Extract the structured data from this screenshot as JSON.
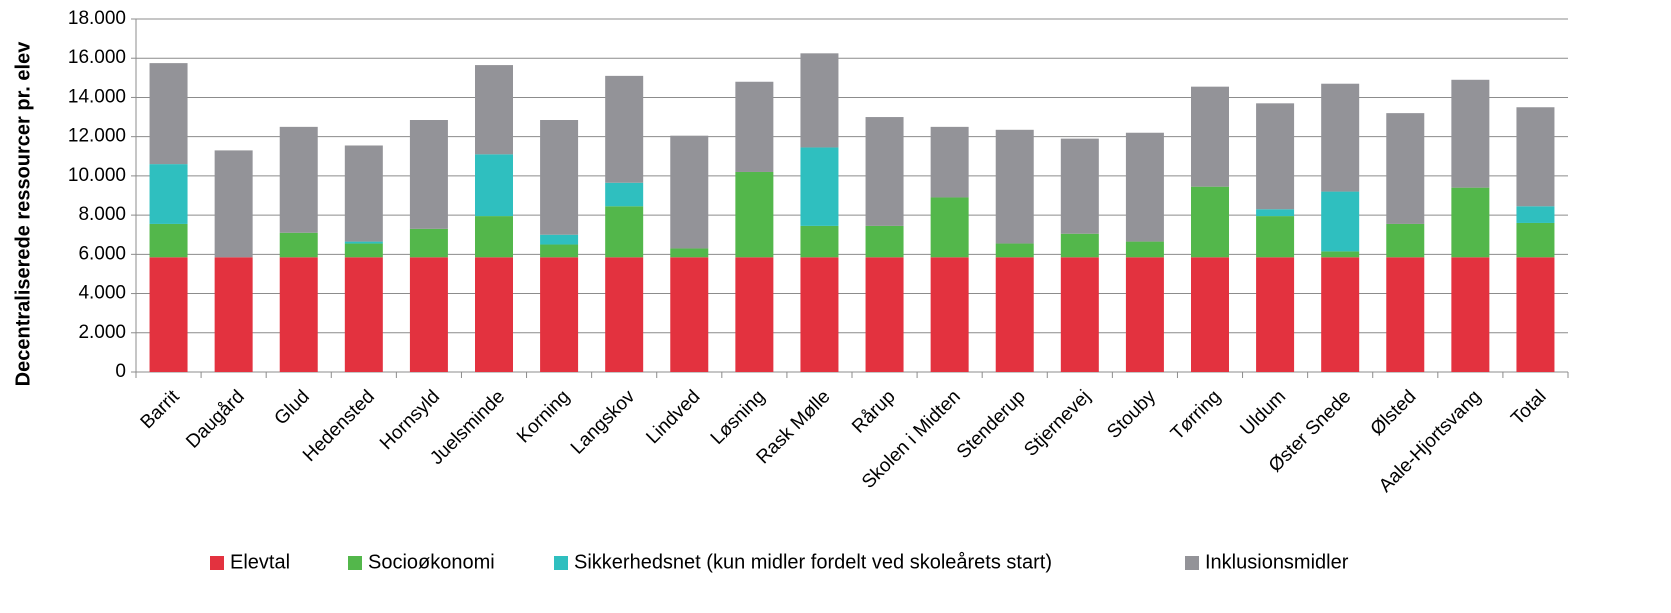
{
  "chart_data": {
    "type": "stacked_bar",
    "y_label": "Decentraliserede ressourcer pr. elev",
    "categories": [
      "Barrit",
      "Daugård",
      "Glud",
      "Hedensted",
      "Hornsyld",
      "Juelsminde",
      "Korning",
      "Langskov",
      "Lindved",
      "Løsning",
      "Rask Mølle",
      "Rårup",
      "Skolen i Midten",
      "Stenderup",
      "Stjernevej",
      "Stouby",
      "Tørring",
      "Uldum",
      "Øster Snede",
      "Ølsted",
      "Aale-Hjortsvang",
      "Total"
    ],
    "series": [
      {
        "name": "Elevtal",
        "color": "#e3323f",
        "values": [
          5850,
          5850,
          5850,
          5850,
          5850,
          5850,
          5850,
          5850,
          5850,
          5850,
          5850,
          5850,
          5850,
          5850,
          5850,
          5850,
          5850,
          5850,
          5850,
          5850,
          5850,
          5850
        ]
      },
      {
        "name": "Socioøkonomi",
        "color": "#53b74b",
        "values": [
          1700,
          0,
          1250,
          700,
          1450,
          2100,
          650,
          2600,
          450,
          4350,
          1600,
          1600,
          3050,
          700,
          1200,
          800,
          3600,
          2100,
          300,
          1700,
          3550,
          1750
        ]
      },
      {
        "name": "Sikkerhedsnet (kun midler fordelt ved skoleårets start)",
        "color": "#2fbfbf",
        "values": [
          3050,
          0,
          0,
          100,
          0,
          3150,
          500,
          1200,
          0,
          0,
          4000,
          0,
          0,
          0,
          0,
          0,
          0,
          350,
          3050,
          0,
          0,
          850
        ]
      },
      {
        "name": "Inklusionsmidler",
        "color": "#939398",
        "values": [
          5150,
          5450,
          5400,
          4900,
          5550,
          4550,
          5850,
          5450,
          5750,
          4600,
          4800,
          5550,
          3600,
          5800,
          4850,
          5550,
          5100,
          5400,
          5500,
          5650,
          5500,
          5050
        ]
      }
    ],
    "ylim": [
      0,
      18000
    ],
    "yticks": [
      0,
      {
        "value": 2000,
        "label": "2.000"
      },
      {
        "value": 4000,
        "label": "4.000"
      },
      {
        "value": 6000,
        "label": "6.000"
      },
      {
        "value": 8000,
        "label": "8.000"
      },
      {
        "value": 10000,
        "label": "10.000"
      },
      {
        "value": 12000,
        "label": "12.000"
      },
      {
        "value": 14000,
        "label": "14.000"
      },
      {
        "value": 16000,
        "label": "16.000"
      },
      {
        "value": 18000,
        "label": "18.000"
      }
    ],
    "grid": true,
    "legend": "bottom"
  }
}
